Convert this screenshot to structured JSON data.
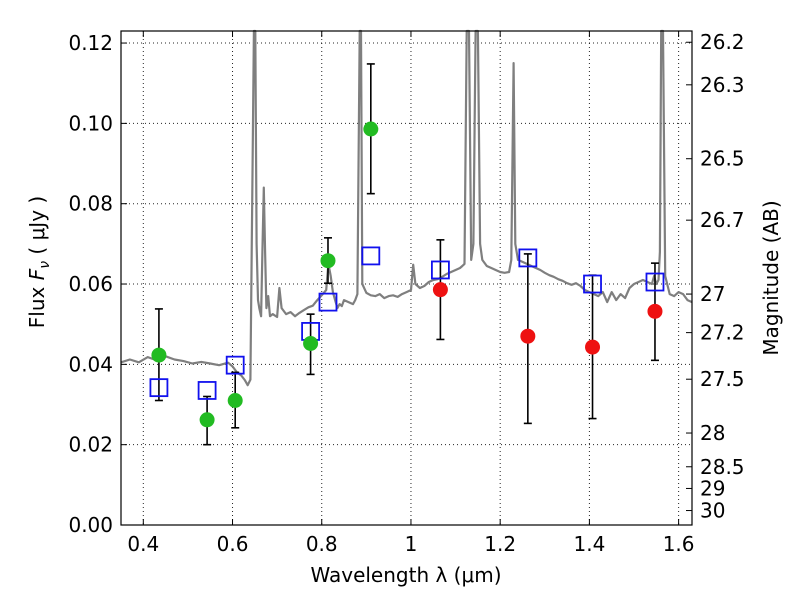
{
  "chart_data": {
    "type": "scatter",
    "xlabel": "Wavelength  λ (μm)",
    "ylabel": "Flux  F_ν  ( μJy )",
    "ylabel_parts": {
      "prefix": "Flux  ",
      "symbol": "F",
      "subscript": "ν",
      "suffix": "  ( μJy )"
    },
    "y2label": "Magnitude (AB)",
    "xlim": [
      0.35,
      1.63
    ],
    "ylim": [
      0.0,
      0.123
    ],
    "grid": true,
    "x_ticks": [
      {
        "value": 0.4,
        "label": "0.4"
      },
      {
        "value": 0.6,
        "label": "0.6"
      },
      {
        "value": 0.8,
        "label": "0.8"
      },
      {
        "value": 1.0,
        "label": "1"
      },
      {
        "value": 1.2,
        "label": "1.2"
      },
      {
        "value": 1.4,
        "label": "1.4"
      },
      {
        "value": 1.6,
        "label": "1.6"
      }
    ],
    "y_ticks": [
      {
        "value": 0.0,
        "label": "0.00"
      },
      {
        "value": 0.02,
        "label": "0.02"
      },
      {
        "value": 0.04,
        "label": "0.04"
      },
      {
        "value": 0.06,
        "label": "0.06"
      },
      {
        "value": 0.08,
        "label": "0.08"
      },
      {
        "value": 0.1,
        "label": "0.10"
      },
      {
        "value": 0.12,
        "label": "0.12"
      }
    ],
    "mag_ticks": [
      {
        "label": "26.2",
        "flux": 0.1202
      },
      {
        "label": "26.3",
        "flux": 0.1096
      },
      {
        "label": "26.5",
        "flux": 0.0912
      },
      {
        "label": "26.7",
        "flux": 0.0759
      },
      {
        "label": "27",
        "flux": 0.0575
      },
      {
        "label": "27.2",
        "flux": 0.0479
      },
      {
        "label": "27.5",
        "flux": 0.0363
      },
      {
        "label": "28",
        "flux": 0.0229
      },
      {
        "label": "28.5",
        "flux": 0.0145
      },
      {
        "label": "29",
        "flux": 0.0091
      },
      {
        "label": "30",
        "flux": 0.0036
      }
    ],
    "series": [
      {
        "name": "green-detections",
        "color": "#22bb22",
        "marker": "circle",
        "points": [
          {
            "x": 0.435,
            "y": 0.0423,
            "ylo": 0.031,
            "yhi": 0.0538
          },
          {
            "x": 0.543,
            "y": 0.0262,
            "ylo": 0.02,
            "yhi": 0.032
          },
          {
            "x": 0.606,
            "y": 0.031,
            "ylo": 0.0242,
            "yhi": 0.038
          },
          {
            "x": 0.775,
            "y": 0.0452,
            "ylo": 0.0375,
            "yhi": 0.0525
          },
          {
            "x": 0.814,
            "y": 0.0658,
            "ylo": 0.0602,
            "yhi": 0.0715
          },
          {
            "x": 0.91,
            "y": 0.0986,
            "ylo": 0.0825,
            "yhi": 0.1148
          }
        ]
      },
      {
        "name": "red-detections",
        "color": "#ee1111",
        "marker": "circle",
        "points": [
          {
            "x": 1.066,
            "y": 0.0586,
            "ylo": 0.0462,
            "yhi": 0.071
          },
          {
            "x": 1.262,
            "y": 0.047,
            "ylo": 0.0253,
            "yhi": 0.0675
          },
          {
            "x": 1.407,
            "y": 0.0443,
            "ylo": 0.0265,
            "yhi": 0.0622
          },
          {
            "x": 1.547,
            "y": 0.0532,
            "ylo": 0.041,
            "yhi": 0.0652
          }
        ]
      },
      {
        "name": "model-photometry",
        "color": "#1111ee",
        "marker": "square-open",
        "points": [
          {
            "x": 0.435,
            "y": 0.0342
          },
          {
            "x": 0.543,
            "y": 0.0335
          },
          {
            "x": 0.606,
            "y": 0.0398
          },
          {
            "x": 0.775,
            "y": 0.0482
          },
          {
            "x": 0.814,
            "y": 0.0555
          },
          {
            "x": 0.91,
            "y": 0.067
          },
          {
            "x": 1.066,
            "y": 0.0635
          },
          {
            "x": 1.262,
            "y": 0.0665
          },
          {
            "x": 1.407,
            "y": 0.06
          },
          {
            "x": 1.547,
            "y": 0.0605
          }
        ]
      }
    ],
    "spectrum": {
      "name": "model-spectrum",
      "color": "#7f7f7f",
      "points": [
        [
          0.35,
          0.0405
        ],
        [
          0.37,
          0.0412
        ],
        [
          0.39,
          0.0405
        ],
        [
          0.41,
          0.0418
        ],
        [
          0.43,
          0.041
        ],
        [
          0.45,
          0.042
        ],
        [
          0.47,
          0.0412
        ],
        [
          0.49,
          0.0408
        ],
        [
          0.51,
          0.0402
        ],
        [
          0.53,
          0.0406
        ],
        [
          0.55,
          0.0402
        ],
        [
          0.57,
          0.0398
        ],
        [
          0.59,
          0.0404
        ],
        [
          0.6,
          0.0395
        ],
        [
          0.61,
          0.038
        ],
        [
          0.62,
          0.0372
        ],
        [
          0.628,
          0.036
        ],
        [
          0.634,
          0.0348
        ],
        [
          0.64,
          0.0362
        ],
        [
          0.645,
          0.09
        ],
        [
          0.648,
          0.123
        ],
        [
          0.651,
          0.123
        ],
        [
          0.654,
          0.07
        ],
        [
          0.657,
          0.056
        ],
        [
          0.66,
          0.054
        ],
        [
          0.664,
          0.052
        ],
        [
          0.667,
          0.068
        ],
        [
          0.67,
          0.084
        ],
        [
          0.673,
          0.068
        ],
        [
          0.676,
          0.054
        ],
        [
          0.68,
          0.057
        ],
        [
          0.684,
          0.052
        ],
        [
          0.69,
          0.0525
        ],
        [
          0.7,
          0.0518
        ],
        [
          0.705,
          0.059
        ],
        [
          0.71,
          0.054
        ],
        [
          0.72,
          0.0525
        ],
        [
          0.73,
          0.053
        ],
        [
          0.74,
          0.052
        ],
        [
          0.75,
          0.0528
        ],
        [
          0.76,
          0.0535
        ],
        [
          0.77,
          0.0542
        ],
        [
          0.78,
          0.0546
        ],
        [
          0.79,
          0.056
        ],
        [
          0.8,
          0.0572
        ],
        [
          0.81,
          0.0585
        ],
        [
          0.815,
          0.065
        ],
        [
          0.82,
          0.062
        ],
        [
          0.825,
          0.058
        ],
        [
          0.83,
          0.056
        ],
        [
          0.835,
          0.054
        ],
        [
          0.84,
          0.055
        ],
        [
          0.845,
          0.0545
        ],
        [
          0.85,
          0.056
        ],
        [
          0.86,
          0.0555
        ],
        [
          0.87,
          0.055
        ],
        [
          0.875,
          0.056
        ],
        [
          0.88,
          0.0575
        ],
        [
          0.885,
          0.123
        ],
        [
          0.888,
          0.123
        ],
        [
          0.891,
          0.06
        ],
        [
          0.9,
          0.0578
        ],
        [
          0.91,
          0.0572
        ],
        [
          0.92,
          0.057
        ],
        [
          0.93,
          0.0575
        ],
        [
          0.94,
          0.0565
        ],
        [
          0.95,
          0.057
        ],
        [
          0.96,
          0.0572
        ],
        [
          0.97,
          0.0568
        ],
        [
          0.98,
          0.0575
        ],
        [
          0.99,
          0.058
        ],
        [
          1.0,
          0.0585
        ],
        [
          1.005,
          0.0648
        ],
        [
          1.01,
          0.06
        ],
        [
          1.02,
          0.059
        ],
        [
          1.03,
          0.0595
        ],
        [
          1.04,
          0.0605
        ],
        [
          1.05,
          0.061
        ],
        [
          1.06,
          0.0612
        ],
        [
          1.07,
          0.0618
        ],
        [
          1.08,
          0.0625
        ],
        [
          1.09,
          0.063
        ],
        [
          1.1,
          0.0635
        ],
        [
          1.11,
          0.064
        ],
        [
          1.115,
          0.0645
        ],
        [
          1.12,
          0.065
        ],
        [
          1.125,
          0.123
        ],
        [
          1.13,
          0.123
        ],
        [
          1.135,
          0.066
        ],
        [
          1.14,
          0.07
        ],
        [
          1.145,
          0.123
        ],
        [
          1.15,
          0.123
        ],
        [
          1.155,
          0.07
        ],
        [
          1.16,
          0.066
        ],
        [
          1.17,
          0.0645
        ],
        [
          1.18,
          0.064
        ],
        [
          1.19,
          0.0635
        ],
        [
          1.2,
          0.063
        ],
        [
          1.21,
          0.0628
        ],
        [
          1.22,
          0.063
        ],
        [
          1.225,
          0.066
        ],
        [
          1.23,
          0.115
        ],
        [
          1.234,
          0.07
        ],
        [
          1.24,
          0.066
        ],
        [
          1.25,
          0.0655
        ],
        [
          1.26,
          0.065
        ],
        [
          1.27,
          0.0645
        ],
        [
          1.28,
          0.064
        ],
        [
          1.29,
          0.0635
        ],
        [
          1.3,
          0.0628
        ],
        [
          1.31,
          0.0622
        ],
        [
          1.32,
          0.0618
        ],
        [
          1.33,
          0.0612
        ],
        [
          1.34,
          0.0608
        ],
        [
          1.35,
          0.0602
        ],
        [
          1.36,
          0.0598
        ],
        [
          1.37,
          0.0602
        ],
        [
          1.38,
          0.0595
        ],
        [
          1.39,
          0.0585
        ],
        [
          1.4,
          0.058
        ],
        [
          1.41,
          0.0575
        ],
        [
          1.42,
          0.057
        ],
        [
          1.43,
          0.058
        ],
        [
          1.44,
          0.0555
        ],
        [
          1.45,
          0.058
        ],
        [
          1.46,
          0.056
        ],
        [
          1.47,
          0.0575
        ],
        [
          1.48,
          0.0565
        ],
        [
          1.49,
          0.059
        ],
        [
          1.5,
          0.06
        ],
        [
          1.51,
          0.0605
        ],
        [
          1.52,
          0.061
        ],
        [
          1.53,
          0.0605
        ],
        [
          1.54,
          0.06
        ],
        [
          1.545,
          0.062
        ],
        [
          1.55,
          0.06
        ],
        [
          1.555,
          0.061
        ],
        [
          1.558,
          0.068
        ],
        [
          1.561,
          0.123
        ],
        [
          1.565,
          0.123
        ],
        [
          1.57,
          0.062
        ],
        [
          1.58,
          0.0575
        ],
        [
          1.59,
          0.057
        ],
        [
          1.6,
          0.058
        ],
        [
          1.61,
          0.0575
        ],
        [
          1.62,
          0.056
        ],
        [
          1.63,
          0.0555
        ]
      ]
    }
  }
}
